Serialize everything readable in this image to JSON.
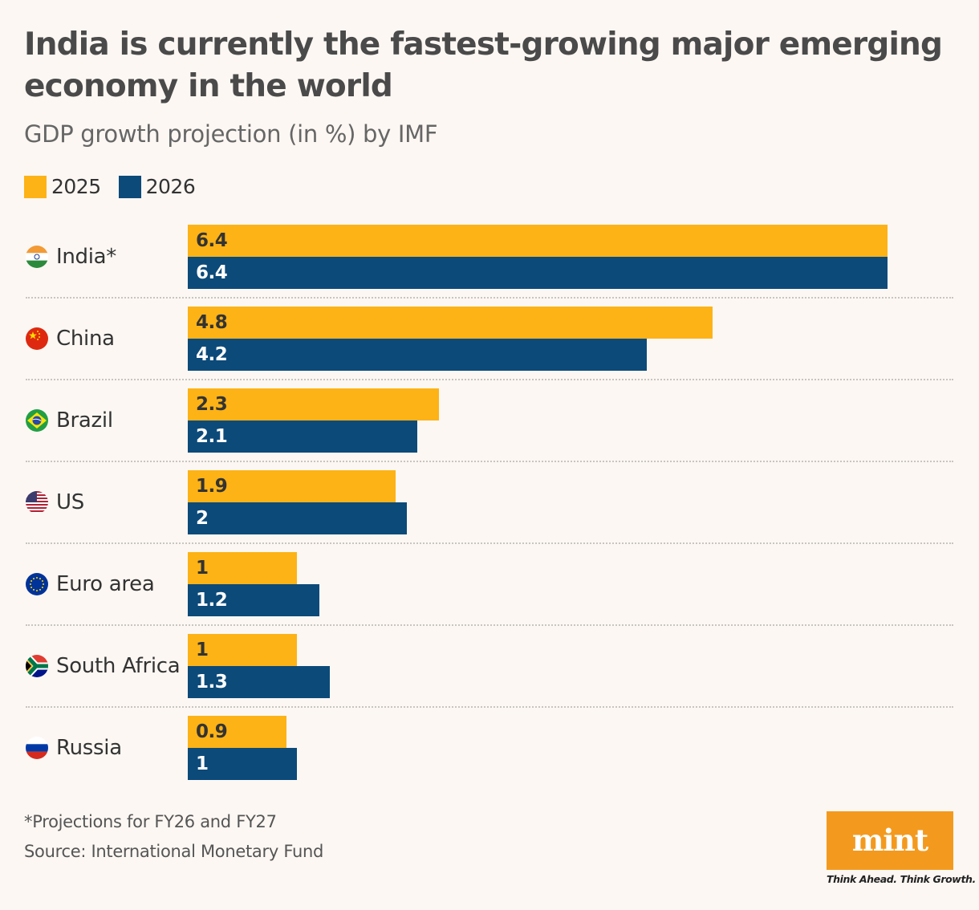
{
  "title": "India is currently the fastest-growing major emerging economy in the world",
  "subtitle": "GDP growth projection (in %) by IMF",
  "colors": {
    "y2025": "#fdb316",
    "y2026": "#0c4a7a",
    "background": "#fcf7f3",
    "logo": "#f39a1e"
  },
  "chart_data": {
    "type": "bar",
    "orientation": "horizontal",
    "categories": [
      "India*",
      "China",
      "Brazil",
      "US",
      "Euro area",
      "South Africa",
      "Russia"
    ],
    "flags": [
      "india-flag-icon",
      "china-flag-icon",
      "brazil-flag-icon",
      "us-flag-icon",
      "eu-flag-icon",
      "south-africa-flag-icon",
      "russia-flag-icon"
    ],
    "series": [
      {
        "name": "2025",
        "values": [
          6.4,
          4.8,
          2.3,
          1.9,
          1,
          1,
          0.9
        ]
      },
      {
        "name": "2026",
        "values": [
          6.4,
          4.2,
          2.1,
          2,
          1.2,
          1.3,
          1
        ]
      }
    ],
    "xlim": [
      0,
      6.4
    ],
    "legend": "top-left",
    "grid": false
  },
  "footnote": "*Projections for FY26 and FY27",
  "source": "Source: International Monetary Fund",
  "logo": {
    "text": "mint",
    "tagline": "Think Ahead. Think Growth."
  }
}
